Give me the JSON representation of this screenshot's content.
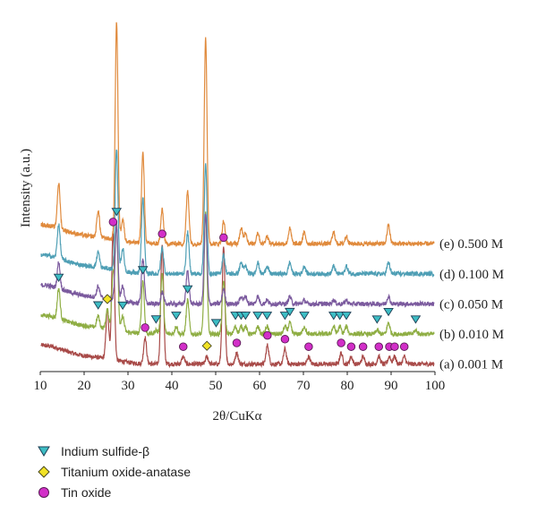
{
  "chart_data": {
    "type": "line",
    "xlabel": "2θ/CuKα",
    "ylabel": "Intensity (a.u.)",
    "xlim": [
      10,
      100
    ],
    "xticks": [
      10,
      20,
      30,
      40,
      50,
      60,
      70,
      80,
      90,
      100
    ],
    "yticks_shown": false,
    "grid": false,
    "legend_position": "bottom-left",
    "series": [
      {
        "key": "a",
        "name": "(a) 0.001 M",
        "color": "#a84a48",
        "baseline": 0.02,
        "peaks": [
          [
            25.3,
            0.13
          ],
          [
            26.6,
            0.34
          ],
          [
            33.9,
            0.07
          ],
          [
            37.8,
            0.32
          ],
          [
            42.6,
            0.02
          ],
          [
            48.0,
            0.02
          ],
          [
            51.8,
            0.31
          ],
          [
            54.8,
            0.03
          ],
          [
            61.8,
            0.05
          ],
          [
            65.8,
            0.04
          ],
          [
            71.2,
            0.02
          ],
          [
            78.6,
            0.03
          ],
          [
            80.9,
            0.02
          ],
          [
            83.6,
            0.02
          ],
          [
            87.2,
            0.02
          ],
          [
            89.6,
            0.02
          ],
          [
            90.8,
            0.02
          ],
          [
            93.0,
            0.02
          ]
        ]
      },
      {
        "key": "b",
        "name": "(b) 0.010 M",
        "color": "#8fae44",
        "baseline": 0.1,
        "peaks": [
          [
            14.2,
            0.08
          ],
          [
            23.2,
            0.03
          ],
          [
            25.3,
            0.05
          ],
          [
            26.6,
            0.14
          ],
          [
            27.4,
            0.28
          ],
          [
            28.8,
            0.04
          ],
          [
            33.4,
            0.14
          ],
          [
            36.4,
            0.01
          ],
          [
            37.8,
            0.16
          ],
          [
            41.0,
            0.02
          ],
          [
            43.6,
            0.09
          ],
          [
            47.7,
            0.32
          ],
          [
            51.8,
            0.14
          ],
          [
            54.5,
            0.02
          ],
          [
            55.8,
            0.02
          ],
          [
            56.8,
            0.02
          ],
          [
            59.6,
            0.02
          ],
          [
            61.7,
            0.02
          ],
          [
            65.8,
            0.02
          ],
          [
            66.9,
            0.03
          ],
          [
            70.2,
            0.02
          ],
          [
            76.9,
            0.02
          ],
          [
            78.3,
            0.02
          ],
          [
            79.8,
            0.02
          ],
          [
            86.8,
            0.01
          ],
          [
            89.4,
            0.03
          ],
          [
            95.6,
            0.01
          ]
        ]
      },
      {
        "key": "c",
        "name": "(c) 0.050 M",
        "color": "#7b5a9e",
        "baseline": 0.18,
        "peaks": [
          [
            14.2,
            0.07
          ],
          [
            23.2,
            0.03
          ],
          [
            27.4,
            0.2
          ],
          [
            28.8,
            0.04
          ],
          [
            33.4,
            0.12
          ],
          [
            37.8,
            0.03
          ],
          [
            43.6,
            0.09
          ],
          [
            47.7,
            0.24
          ],
          [
            51.8,
            0.04
          ],
          [
            55.8,
            0.02
          ],
          [
            56.8,
            0.02
          ],
          [
            59.6,
            0.02
          ],
          [
            61.7,
            0.01
          ],
          [
            66.9,
            0.02
          ],
          [
            70.2,
            0.01
          ],
          [
            76.9,
            0.01
          ],
          [
            79.8,
            0.01
          ],
          [
            89.4,
            0.02
          ]
        ]
      },
      {
        "key": "d",
        "name": "(d) 0.100 M",
        "color": "#4f9fb5",
        "baseline": 0.26,
        "peaks": [
          [
            14.2,
            0.09
          ],
          [
            23.2,
            0.04
          ],
          [
            27.4,
            0.32
          ],
          [
            28.8,
            0.06
          ],
          [
            33.4,
            0.2
          ],
          [
            37.8,
            0.07
          ],
          [
            43.6,
            0.11
          ],
          [
            47.7,
            0.29
          ],
          [
            51.8,
            0.05
          ],
          [
            55.8,
            0.03
          ],
          [
            56.8,
            0.02
          ],
          [
            59.6,
            0.03
          ],
          [
            61.7,
            0.02
          ],
          [
            66.9,
            0.03
          ],
          [
            70.2,
            0.02
          ],
          [
            76.9,
            0.02
          ],
          [
            79.8,
            0.02
          ],
          [
            89.4,
            0.03
          ]
        ]
      },
      {
        "key": "e",
        "name": "(e) 0.500 M",
        "color": "#e08a3c",
        "baseline": 0.34,
        "peaks": [
          [
            14.2,
            0.12
          ],
          [
            23.2,
            0.07
          ],
          [
            27.4,
            0.58
          ],
          [
            28.8,
            0.06
          ],
          [
            33.4,
            0.24
          ],
          [
            37.8,
            0.09
          ],
          [
            43.6,
            0.14
          ],
          [
            47.7,
            0.55
          ],
          [
            51.8,
            0.06
          ],
          [
            55.8,
            0.04
          ],
          [
            56.8,
            0.03
          ],
          [
            59.6,
            0.03
          ],
          [
            61.7,
            0.02
          ],
          [
            66.9,
            0.04
          ],
          [
            70.2,
            0.03
          ],
          [
            76.9,
            0.03
          ],
          [
            79.8,
            0.02
          ],
          [
            89.4,
            0.05
          ]
        ]
      }
    ],
    "markers": {
      "indium_sulfide_beta": {
        "color": "#3dbdc4",
        "series": "b",
        "x": [
          14.2,
          23.2,
          27.4,
          28.8,
          33.4,
          36.4,
          41.0,
          43.6,
          50.1,
          54.5,
          55.8,
          56.8,
          59.6,
          61.7,
          65.8,
          66.9,
          70.2,
          76.9,
          78.3,
          79.8,
          86.8,
          89.4,
          95.6
        ]
      },
      "titanium_oxide_anatase": {
        "color": "#f2e326",
        "series": "a",
        "x": [
          25.3,
          48.0
        ]
      },
      "tin_oxide": {
        "color": "#d22fc8",
        "series": "a",
        "x": [
          26.6,
          33.9,
          37.8,
          42.6,
          51.8,
          54.8,
          61.8,
          65.8,
          71.2,
          78.6,
          80.9,
          83.6,
          87.2,
          89.6,
          90.8,
          93.0
        ]
      }
    },
    "legend": {
      "entries": [
        {
          "key": "indium_sulfide_beta",
          "label": "Indium sulfide-β",
          "symbol": "down-triangle",
          "color": "#3dbdc4"
        },
        {
          "key": "titanium_oxide_anatase",
          "label": "Titanium oxide-anatase",
          "symbol": "diamond",
          "color": "#f2e326"
        },
        {
          "key": "tin_oxide",
          "label": "Tin oxide",
          "symbol": "circle",
          "color": "#d22fc8"
        }
      ]
    }
  }
}
